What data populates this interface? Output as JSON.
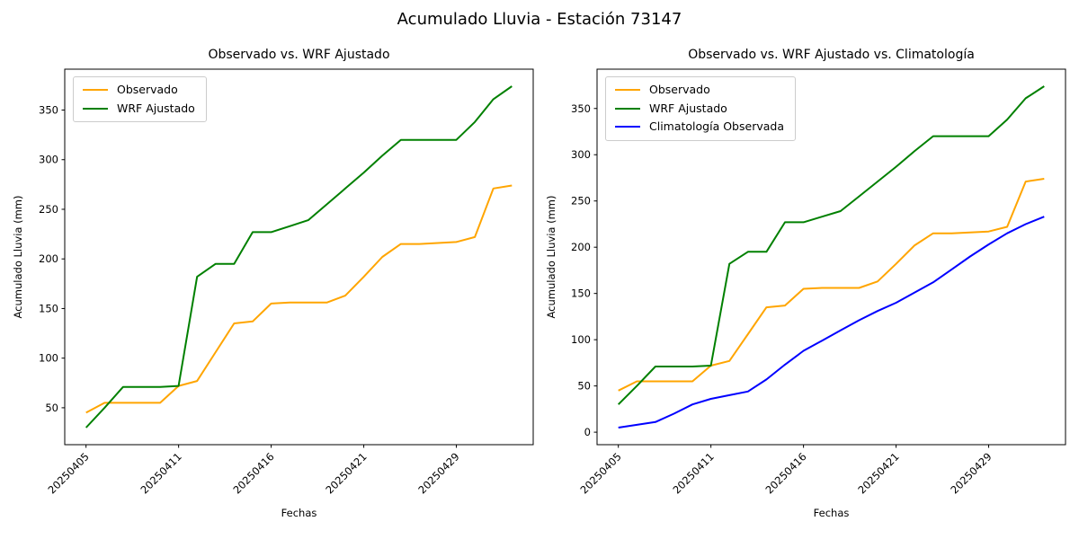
{
  "figure": {
    "suptitle": "Acumulado Lluvia - Estación 73147"
  },
  "colors": {
    "observado": "#FFA500",
    "wrf_ajustado": "#008000",
    "climatologia": "#0000FF",
    "spine": "#000000",
    "text": "#000000",
    "legend_border": "#cccccc"
  },
  "chart_data": [
    {
      "type": "line",
      "title": "Observado vs. WRF Ajustado",
      "xlabel": "Fechas",
      "ylabel": "Acumulado Lluvia (mm)",
      "grid": false,
      "legend_position": "upper left",
      "n_points": 24,
      "x": [
        0,
        1,
        2,
        3,
        4,
        5,
        6,
        7,
        8,
        9,
        10,
        11,
        12,
        13,
        14,
        15,
        16,
        17,
        18,
        19,
        20,
        21,
        22,
        23
      ],
      "x_tick_positions": [
        0,
        5,
        10,
        15,
        20
      ],
      "x_tick_labels": [
        "20250405",
        "20250411",
        "20250416",
        "20250421",
        "20250429"
      ],
      "x_tick_rotation": 45,
      "y_ticks": [
        50,
        100,
        150,
        200,
        250,
        300,
        350
      ],
      "ylim": [
        12.8,
        391.2
      ],
      "series": [
        {
          "name": "Observado",
          "color": "#FFA500",
          "values": [
            45,
            55,
            55,
            55,
            55,
            72,
            77,
            106,
            135,
            137,
            155,
            156,
            156,
            156,
            163,
            182,
            202,
            215,
            215,
            216,
            217,
            222,
            271,
            274
          ]
        },
        {
          "name": "WRF Ajustado",
          "color": "#008000",
          "values": [
            30,
            50,
            71,
            71,
            71,
            72,
            182,
            195,
            195,
            227,
            227,
            233,
            239,
            255,
            271,
            287,
            304,
            320,
            320,
            320,
            320,
            338,
            361,
            374
          ]
        }
      ]
    },
    {
      "type": "line",
      "title": "Observado vs. WRF Ajustado vs. Climatología",
      "xlabel": "Fechas",
      "ylabel": "Acumulado Lluvia (mm)",
      "grid": false,
      "legend_position": "upper left",
      "n_points": 24,
      "x": [
        0,
        1,
        2,
        3,
        4,
        5,
        6,
        7,
        8,
        9,
        10,
        11,
        12,
        13,
        14,
        15,
        16,
        17,
        18,
        19,
        20,
        21,
        22,
        23
      ],
      "x_tick_positions": [
        0,
        5,
        10,
        15,
        20
      ],
      "x_tick_labels": [
        "20250405",
        "20250411",
        "20250416",
        "20250421",
        "20250429"
      ],
      "x_tick_rotation": 45,
      "y_ticks": [
        0,
        50,
        100,
        150,
        200,
        250,
        300,
        350
      ],
      "ylim": [
        -13.5,
        392.5
      ],
      "series": [
        {
          "name": "Observado",
          "color": "#FFA500",
          "values": [
            45,
            55,
            55,
            55,
            55,
            72,
            77,
            106,
            135,
            137,
            155,
            156,
            156,
            156,
            163,
            182,
            202,
            215,
            215,
            216,
            217,
            222,
            271,
            274
          ]
        },
        {
          "name": "WRF Ajustado",
          "color": "#008000",
          "values": [
            30,
            50,
            71,
            71,
            71,
            72,
            182,
            195,
            195,
            227,
            227,
            233,
            239,
            255,
            271,
            287,
            304,
            320,
            320,
            320,
            320,
            338,
            361,
            374
          ]
        },
        {
          "name": "Climatología Observada",
          "color": "#0000FF",
          "values": [
            5,
            8,
            11,
            20,
            30,
            36,
            40,
            44,
            57,
            73,
            88,
            99,
            110,
            121,
            131,
            140,
            151,
            162,
            176,
            190,
            203,
            215,
            225,
            233
          ]
        }
      ]
    }
  ]
}
